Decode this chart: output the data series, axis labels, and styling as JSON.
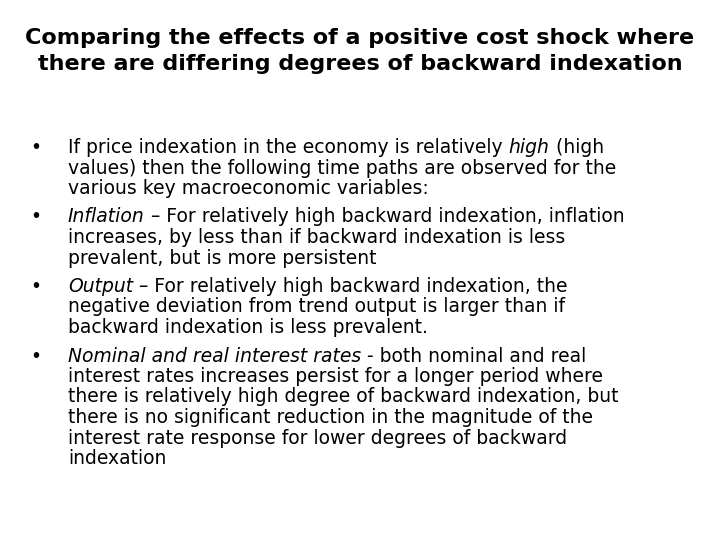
{
  "title_line1": "Comparing the effects of a positive cost shock where",
  "title_line2": "there are differing degrees of backward indexation",
  "title_fontsize": 16,
  "body_fontsize": 13.5,
  "background_color": "#ffffff",
  "text_color": "#000000",
  "bullet_char": "•",
  "bullet_points": [
    {
      "segments": [
        {
          "text": "If price indexation in the economy is relatively ",
          "bold": false,
          "italic": false
        },
        {
          "text": "high",
          "bold": false,
          "italic": true
        },
        {
          "text": " (high\nvalues) then the following time paths are observed for the\nvarious key macroeconomic variables:",
          "bold": false,
          "italic": false
        }
      ]
    },
    {
      "segments": [
        {
          "text": "Inflation",
          "bold": false,
          "italic": true
        },
        {
          "text": " – For relatively high backward indexation, inflation\nincreases, by less than if backward indexation is less\nprevalent, but is more persistent",
          "bold": false,
          "italic": false
        }
      ]
    },
    {
      "segments": [
        {
          "text": "Output",
          "bold": false,
          "italic": true
        },
        {
          "text": " – For relatively high backward indexation, the\nnegative deviation from trend output is larger than if\nbackward indexation is less prevalent.",
          "bold": false,
          "italic": false
        }
      ]
    },
    {
      "segments": [
        {
          "text": "Nominal and real interest rates",
          "bold": false,
          "italic": true
        },
        {
          "text": " - both nominal and real\ninterest rates increases persist for a longer period where\nthere is relatively high degree of backward indexation, but\nthere is no significant reduction in the magnitude of the\ninterest rate response for lower degrees of backward\nindexation",
          "bold": false,
          "italic": false
        }
      ]
    }
  ]
}
